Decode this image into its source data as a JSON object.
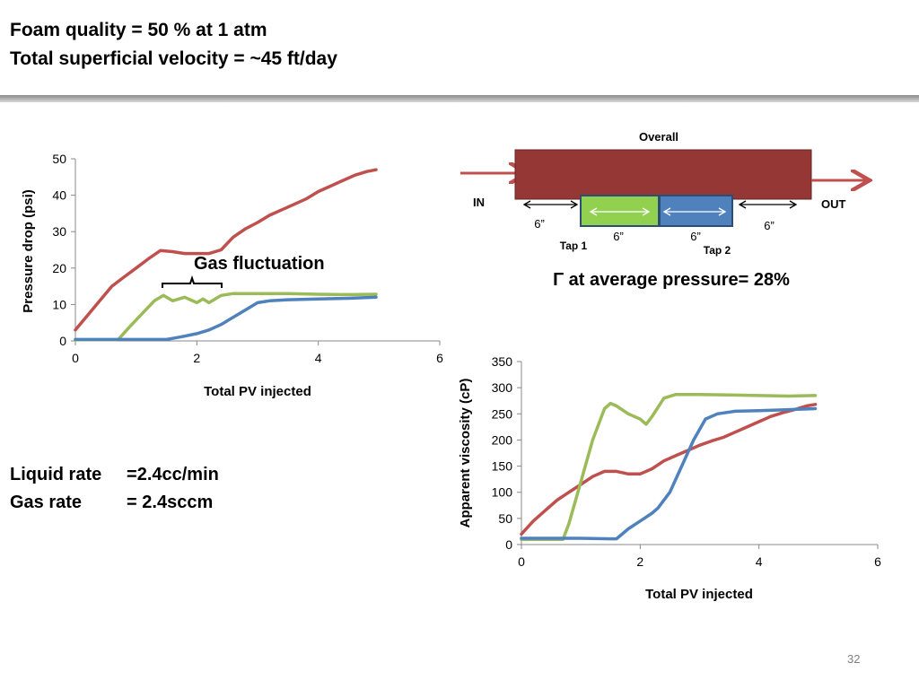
{
  "header": {
    "line1": "Foam quality = 50 % at 1 atm",
    "line2": "Total superficial velocity = ~45 ft/day"
  },
  "rates": {
    "liquid": "Liquid rate     =2.4cc/min",
    "gas": "Gas rate         = 2.4sccm"
  },
  "schematic": {
    "overall_label": "Overall",
    "in_label": "IN",
    "out_label": "OUT",
    "length_left": "6”",
    "length_tap1": "6”",
    "length_tap2": "6”",
    "length_right": "6”",
    "tap1_label": "Tap 1",
    "tap2_label": "Tap 2",
    "gamma_text": "Γ at average pressure= 28%",
    "colors": {
      "overall": "#953735",
      "tap1": "#92d050",
      "tap2": "#4f81bd",
      "arrow": "#c0504d"
    }
  },
  "page_number": "32",
  "chart_data": [
    {
      "type": "line",
      "title": "",
      "xlabel": "Total PV injected",
      "ylabel": "Pressure drop (psi)",
      "xlim": [
        0,
        6
      ],
      "ylim": [
        0,
        50
      ],
      "xticks": [
        0,
        2,
        4,
        6
      ],
      "yticks": [
        0,
        10,
        20,
        30,
        40,
        50
      ],
      "grid": false,
      "legend": "none",
      "annotation": {
        "text": "Gas fluctuation",
        "x_range": [
          1.4,
          2.4
        ],
        "y": 14.5
      },
      "series": [
        {
          "color": "#c0504d",
          "x": [
            0,
            0.2,
            0.4,
            0.6,
            0.8,
            1.0,
            1.2,
            1.4,
            1.6,
            1.8,
            2.0,
            2.2,
            2.4,
            2.6,
            2.8,
            3.0,
            3.2,
            3.4,
            3.6,
            3.8,
            4.0,
            4.2,
            4.4,
            4.6,
            4.8,
            4.95
          ],
          "y": [
            3,
            7,
            11,
            15,
            17.5,
            20,
            22.5,
            24.8,
            24.5,
            24,
            24,
            24,
            25,
            28.5,
            30.8,
            32.5,
            34.5,
            36,
            37.5,
            39,
            41,
            42.5,
            44,
            45.5,
            46.5,
            47
          ]
        },
        {
          "color": "#9bbb59",
          "x": [
            0,
            0.2,
            0.4,
            0.6,
            0.7,
            0.9,
            1.1,
            1.3,
            1.45,
            1.6,
            1.8,
            2.0,
            2.1,
            2.2,
            2.4,
            2.6,
            2.8,
            3.0,
            3.5,
            4.0,
            4.5,
            4.95
          ],
          "y": [
            0.3,
            0.3,
            0.3,
            0.3,
            0.3,
            4,
            7.5,
            11,
            12.5,
            11,
            12,
            10.5,
            11.5,
            10.5,
            12.5,
            13,
            13,
            13,
            13,
            12.8,
            12.7,
            12.8
          ]
        },
        {
          "color": "#4f81bd",
          "x": [
            0,
            0.5,
            1.0,
            1.5,
            1.6,
            1.8,
            2.0,
            2.2,
            2.4,
            2.6,
            2.8,
            3.0,
            3.2,
            3.5,
            4.0,
            4.5,
            4.95
          ],
          "y": [
            0.4,
            0.4,
            0.4,
            0.4,
            0.7,
            1.3,
            2,
            3,
            4.5,
            6.5,
            8.5,
            10.5,
            11,
            11.3,
            11.5,
            11.7,
            12
          ]
        }
      ]
    },
    {
      "type": "line",
      "title": "",
      "xlabel": "Total PV injected",
      "ylabel": "Apparent viscosity (cP)",
      "xlim": [
        0,
        6
      ],
      "ylim": [
        0,
        350
      ],
      "xticks": [
        0,
        2,
        4,
        6
      ],
      "yticks": [
        0,
        50,
        100,
        150,
        200,
        250,
        300,
        350
      ],
      "grid": false,
      "legend": "none",
      "series": [
        {
          "color": "#c0504d",
          "x": [
            0,
            0.2,
            0.4,
            0.6,
            0.8,
            1.0,
            1.2,
            1.4,
            1.6,
            1.8,
            2.0,
            2.2,
            2.4,
            2.6,
            2.8,
            3.0,
            3.2,
            3.4,
            3.6,
            3.8,
            4.0,
            4.2,
            4.4,
            4.6,
            4.8,
            4.95
          ],
          "y": [
            20,
            45,
            65,
            85,
            100,
            115,
            130,
            140,
            140,
            135,
            135,
            145,
            160,
            170,
            180,
            190,
            198,
            205,
            215,
            225,
            235,
            245,
            252,
            258,
            265,
            268
          ]
        },
        {
          "color": "#9bbb59",
          "x": [
            0,
            0.3,
            0.6,
            0.7,
            0.8,
            1.0,
            1.2,
            1.4,
            1.5,
            1.6,
            1.8,
            2.0,
            2.1,
            2.2,
            2.4,
            2.6,
            2.8,
            3.0,
            3.5,
            4.0,
            4.5,
            4.95
          ],
          "y": [
            10,
            10,
            10,
            10,
            40,
            120,
            200,
            260,
            270,
            265,
            250,
            240,
            230,
            245,
            280,
            287,
            287,
            287,
            286,
            285,
            284,
            285
          ]
        },
        {
          "color": "#4f81bd",
          "x": [
            0,
            0.5,
            1.0,
            1.5,
            1.6,
            1.8,
            2.0,
            2.2,
            2.3,
            2.5,
            2.7,
            2.9,
            3.1,
            3.3,
            3.6,
            4.0,
            4.5,
            4.95
          ],
          "y": [
            12,
            12,
            12,
            11,
            11,
            30,
            45,
            60,
            70,
            100,
            150,
            200,
            240,
            250,
            255,
            256,
            258,
            260
          ]
        }
      ]
    }
  ]
}
